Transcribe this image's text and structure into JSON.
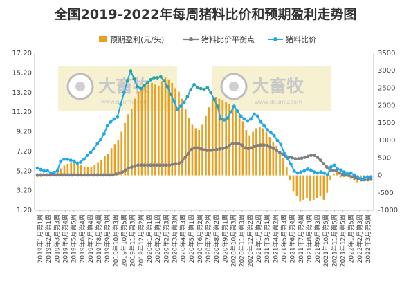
{
  "title": "全国2019-2022年每周猪料比价和预期盈利走势图",
  "watermarks": [
    {
      "brand_cn": "大畜牧",
      "brand_url": "www.dxumu.com"
    },
    {
      "brand_cn": "大畜牧",
      "brand_url": "www.dxumu.com"
    }
  ],
  "colors": {
    "profit": "#e8a021",
    "balance": "#7f7f7f",
    "ratio": "#1ea8e6",
    "ratio_teal": "#2aa39a",
    "watermark_box": "#f5efc8"
  },
  "chart_data": {
    "type": "bar+line",
    "title": "全国2019-2022年每周猪料比价和预期盈利走势图",
    "legend_position": "top",
    "grid": false,
    "y_left": {
      "min": 1.2,
      "max": 17.2,
      "ticks": [
        "17.20",
        "15.20",
        "13.20",
        "11.20",
        "9.20",
        "7.20",
        "5.20",
        "3.20",
        "1.20"
      ]
    },
    "y_right": {
      "min": -1000,
      "max": 3500,
      "ticks": [
        "3500",
        "3000",
        "2500",
        "2000",
        "1500",
        "1000",
        "500",
        "0",
        "-500",
        "-1000"
      ]
    },
    "x_tick_labels": [
      "2019年1月第1周",
      "2019年2月第1周",
      "2019年3月第3周",
      "2019年4月第4周",
      "2019年5月第5周",
      "2019年6月第4周",
      "2019年7月第4周",
      "2019年8月第4周",
      "2019年9月第3周",
      "2019年10月第3周",
      "2019年10月第5周",
      "2019年11月第3周",
      "2019年12月第2周",
      "2020年1月第1周",
      "2020年2月第1周",
      "2020年2月第3周",
      "2020年3月第3周",
      "2020年4月第3周",
      "2020年5月第1周",
      "2020年6月第2周",
      "2020年7月第2周",
      "2020年8月第2周",
      "2020年9月第1周",
      "2020年10月第3周",
      "2020年11月第3周",
      "2020年12月第2周",
      "2021年1月第2周",
      "2021年3月第1周",
      "2021年4月第2周",
      "2021年5月第3周",
      "2021年6月第4周",
      "2021年7月第4周",
      "2021年8月第3周",
      "2021年9月第3周",
      "2021年10月第5周",
      "2021年11月第5周",
      "2021年12月第5周",
      "2022年1月第5周",
      "2022年2月第3周",
      "2022年3月第5周"
    ],
    "series": [
      {
        "name": "预期盈利(元/头)",
        "type": "bar",
        "axis": "right",
        "values": [
          -50,
          -40,
          -30,
          -20,
          -10,
          50,
          150,
          200,
          280,
          330,
          380,
          370,
          330,
          310,
          250,
          230,
          250,
          300,
          380,
          450,
          550,
          620,
          780,
          900,
          1000,
          1250,
          1500,
          1750,
          1900,
          2200,
          2400,
          2500,
          2550,
          2600,
          2650,
          2600,
          2550,
          2700,
          2800,
          2750,
          2650,
          2500,
          2400,
          2200,
          1900,
          1650,
          1450,
          1350,
          1300,
          1450,
          1700,
          1950,
          2150,
          2250,
          2200,
          2150,
          2100,
          2050,
          2000,
          1900,
          1750,
          1550,
          1300,
          1150,
          1250,
          1350,
          1400,
          1350,
          1250,
          1100,
          950,
          850,
          700,
          500,
          250,
          -150,
          -450,
          -600,
          -750,
          -700,
          -650,
          -720,
          -700,
          -650,
          -600,
          -700,
          -500,
          -150,
          50,
          150,
          -60,
          -50,
          -40,
          -100,
          -150,
          -200,
          -150,
          -120,
          -80,
          -70
        ]
      },
      {
        "name": "猪料比价平衡点",
        "type": "line",
        "axis": "left",
        "values": [
          4.8,
          4.8,
          4.8,
          4.8,
          4.8,
          4.8,
          4.8,
          4.8,
          4.8,
          4.8,
          4.8,
          4.8,
          4.8,
          4.8,
          4.8,
          4.8,
          4.8,
          4.8,
          4.8,
          4.8,
          4.8,
          4.8,
          4.8,
          4.8,
          4.8,
          4.9,
          5.0,
          5.1,
          5.3,
          5.5,
          5.6,
          5.7,
          5.8,
          5.8,
          5.8,
          5.8,
          5.8,
          5.8,
          5.8,
          5.8,
          5.8,
          5.8,
          5.8,
          5.9,
          5.95,
          6.0,
          6.2,
          6.6,
          7.0,
          7.4,
          7.55,
          7.55,
          7.45,
          7.35,
          7.3,
          7.3,
          7.35,
          7.4,
          7.45,
          7.5,
          7.6,
          7.8,
          8.0,
          8.0,
          8.0,
          7.85,
          7.55,
          7.5,
          7.55,
          7.7,
          7.8,
          7.85,
          7.85,
          7.8,
          7.65,
          7.5,
          7.3,
          7.1,
          6.9,
          6.7,
          6.6,
          6.55,
          6.45,
          6.45,
          6.5,
          6.6,
          6.7,
          6.8,
          6.8,
          6.6,
          6.3,
          5.95,
          5.6,
          5.3,
          5.25,
          5.25,
          5.0,
          4.85,
          4.8,
          4.75,
          4.6,
          4.5,
          4.4,
          4.3,
          4.3,
          4.3,
          4.35
        ]
      },
      {
        "name": "猪料比价",
        "type": "line",
        "axis": "left",
        "values": [
          5.5,
          5.35,
          5.2,
          5.25,
          5.0,
          5.05,
          5.2,
          6.2,
          6.4,
          6.4,
          6.3,
          6.2,
          6.0,
          6.1,
          6.4,
          6.8,
          7.1,
          7.5,
          8.0,
          8.4,
          9.0,
          9.8,
          10.2,
          10.5,
          10.7,
          12.0,
          13.2,
          14.4,
          15.4,
          14.6,
          13.8,
          13.6,
          13.9,
          14.2,
          14.5,
          14.7,
          14.7,
          14.8,
          14.4,
          13.8,
          13.0,
          12.3,
          11.5,
          11.8,
          12.2,
          12.8,
          13.5,
          14.0,
          13.7,
          13.6,
          13.5,
          13.7,
          13.2,
          12.5,
          11.8,
          10.5,
          10.4,
          10.6,
          11.2,
          11.8,
          11.3,
          10.8,
          10.5,
          10.3,
          10.5,
          11.0,
          10.8,
          10.2,
          9.8,
          9.4,
          9.1,
          8.8,
          8.3,
          7.9,
          7.0,
          6.5,
          5.9,
          5.2,
          5.0,
          5.1,
          5.2,
          5.4,
          5.3,
          5.1,
          5.0,
          5.1,
          5.0,
          4.8,
          5.6,
          5.8,
          5.4,
          5.3,
          5.1,
          4.9,
          5.0,
          4.8,
          4.6,
          4.4,
          4.5,
          4.6,
          4.6
        ]
      }
    ]
  }
}
